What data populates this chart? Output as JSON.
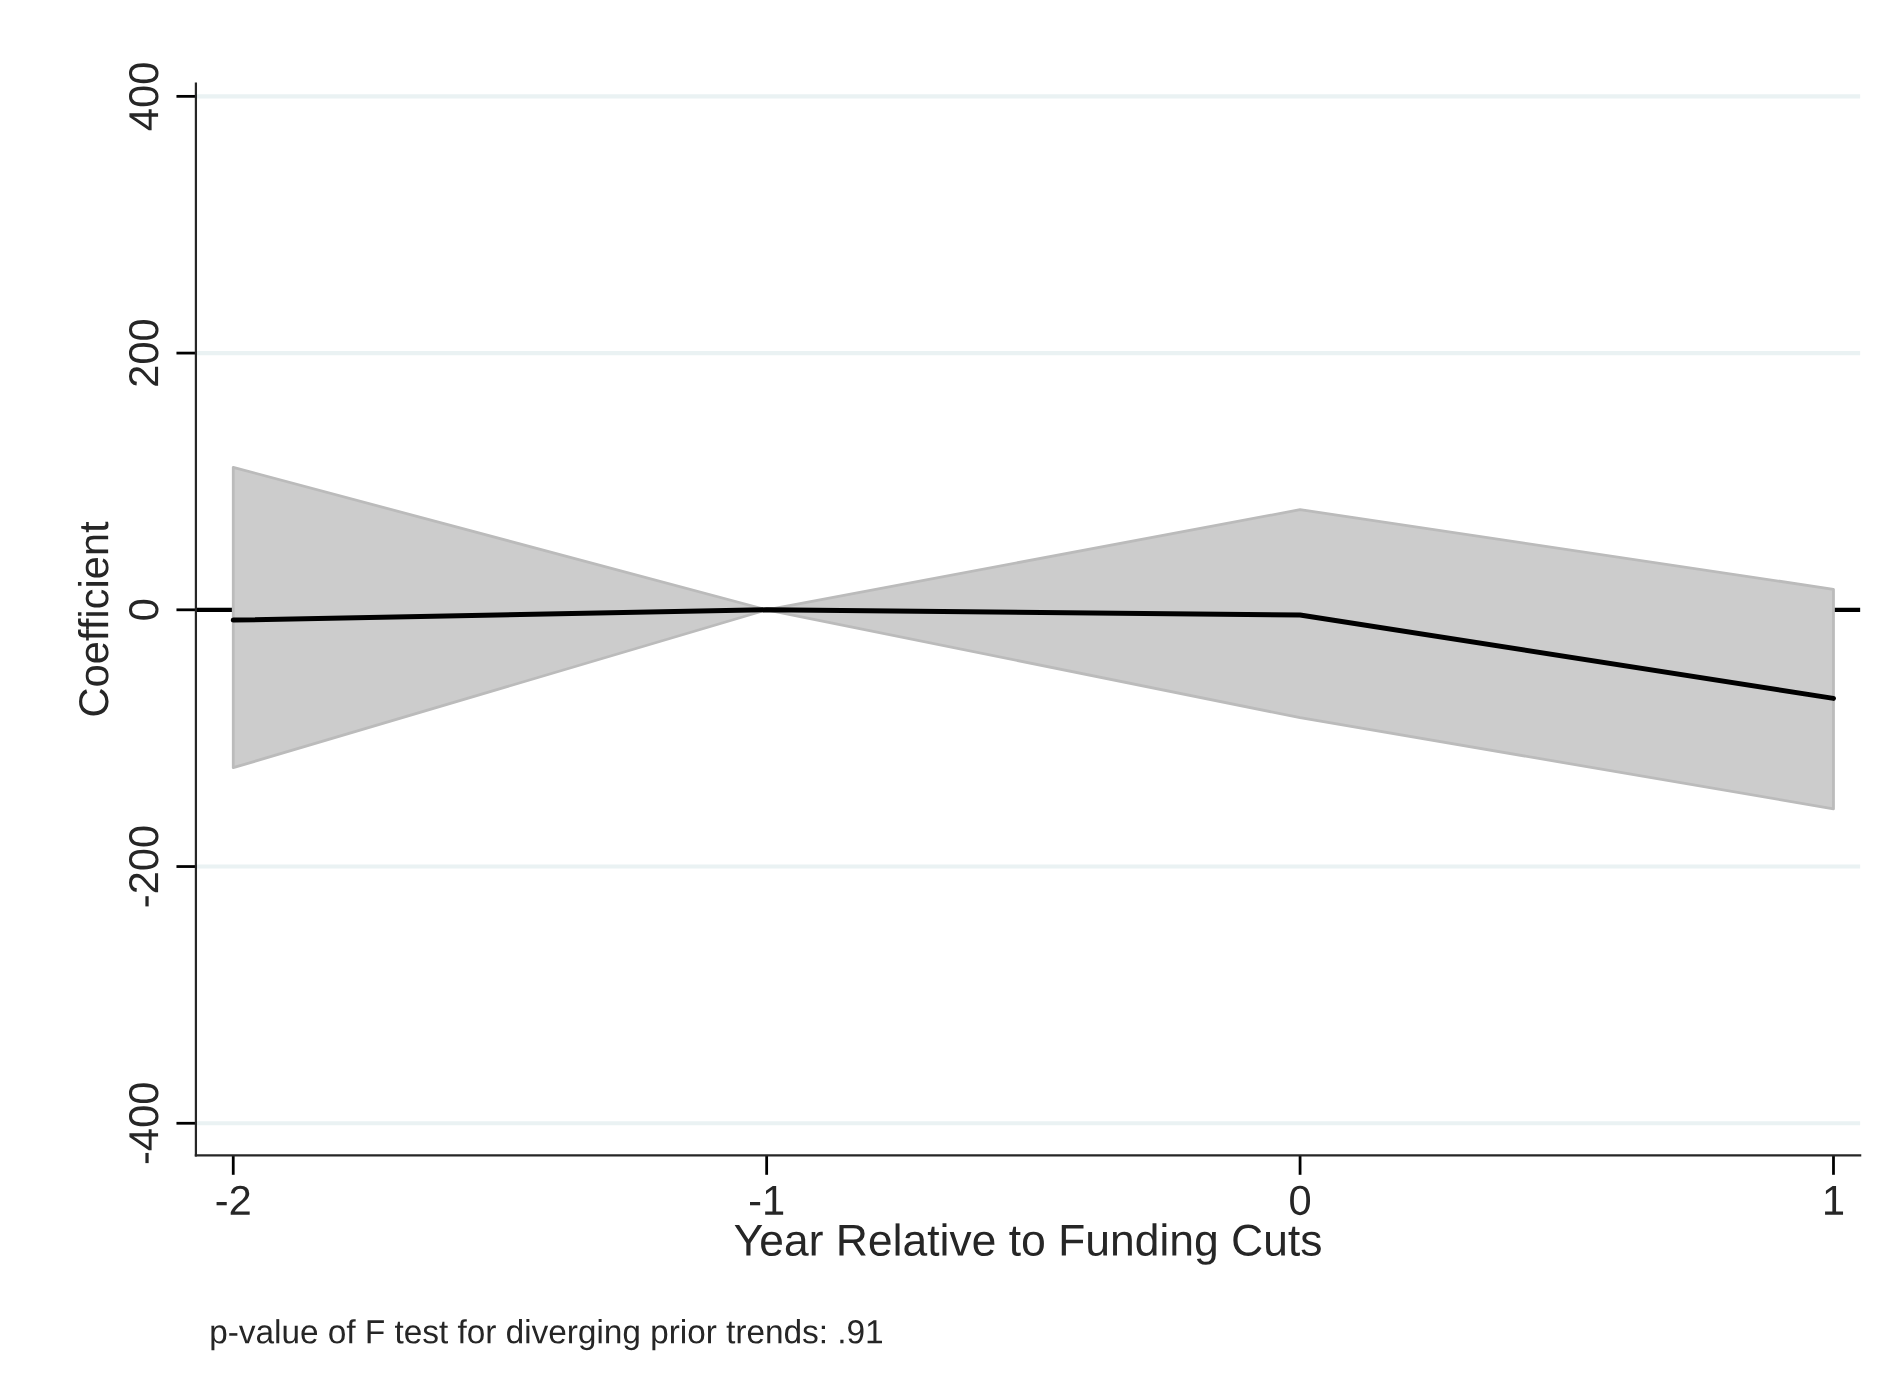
{
  "chart_data": {
    "type": "line",
    "xlabel": "Year Relative to Funding Cuts",
    "ylabel": "Coefficient",
    "x": [
      -2,
      -1,
      0,
      1
    ],
    "series": [
      {
        "color": "#000000",
        "values": [
          -8,
          0,
          -4,
          -69
        ],
        "lower": [
          -123,
          0,
          -84,
          -155
        ],
        "upper": [
          111,
          0,
          78,
          16
        ]
      }
    ],
    "xlim": [
      -2.07,
      1.05
    ],
    "xticks": [
      -2,
      -1,
      0,
      1
    ],
    "ylim": [
      -425,
      410
    ],
    "yticks": [
      -400,
      -200,
      0,
      200,
      400
    ],
    "ref_lines": [
      {
        "axis": "y",
        "value": 0,
        "color": "#000000"
      }
    ],
    "grid": "y",
    "legend": false,
    "marker": "none",
    "line_style": "solid",
    "annotations": [
      "p-value of F test for diverging prior trends: .91"
    ]
  }
}
